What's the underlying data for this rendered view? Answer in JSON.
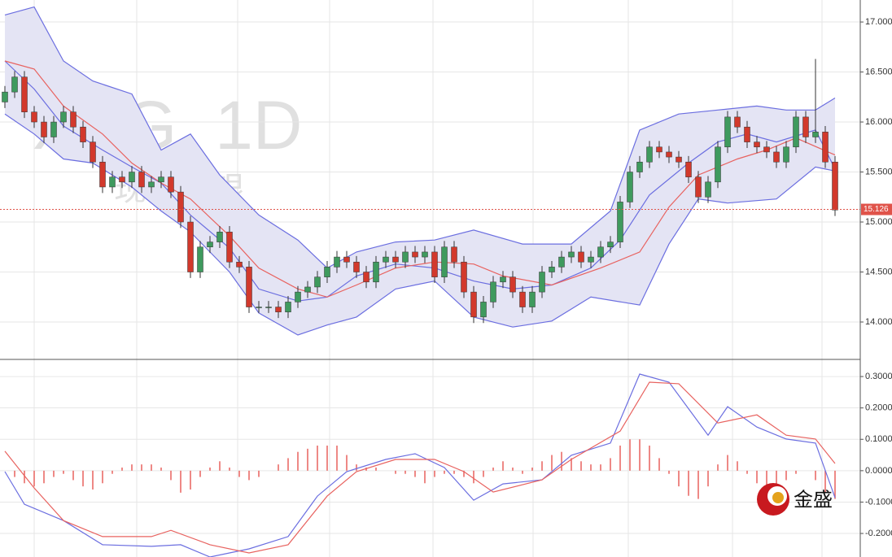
{
  "logo": "金盛",
  "chart_data": [
    {
      "type": "candlestick",
      "watermark": "XAG, 1D",
      "watermark_sub": "现货白银",
      "ylim": [
        13.626,
        17.22
      ],
      "yticks": [
        {
          "value": 14,
          "label": "14.000"
        },
        {
          "value": 14.5,
          "label": "14.500"
        },
        {
          "value": 15,
          "label": "15.000"
        },
        {
          "value": 15.5,
          "label": "15.500"
        },
        {
          "value": 16,
          "label": "16.000"
        },
        {
          "value": 16.5,
          "label": "16.500"
        },
        {
          "value": 17,
          "label": "17.000"
        }
      ],
      "grid": true,
      "up_color": "#3f9a5e",
      "down_color": "#d2392c",
      "band_fill": "#e4e4f4",
      "open": [
        16.2,
        16.3,
        16.45,
        16.1,
        16.0,
        15.85,
        16.0,
        16.1,
        15.95,
        15.8,
        15.6,
        15.35,
        15.45,
        15.4,
        15.5,
        15.35,
        15.4,
        15.45,
        15.3,
        15.0,
        14.5,
        14.75,
        14.8,
        14.9,
        14.6,
        14.55,
        14.15,
        14.15,
        14.15,
        14.1,
        14.2,
        14.3,
        14.35,
        14.45,
        14.55,
        14.65,
        14.6,
        14.5,
        14.4,
        14.6,
        14.65,
        14.6,
        14.7,
        14.65,
        14.7,
        14.45,
        14.75,
        14.6,
        14.3,
        14.05,
        14.2,
        14.4,
        14.45,
        14.3,
        14.15,
        14.3,
        14.5,
        14.55,
        14.65,
        14.7,
        14.6,
        14.65,
        14.75,
        14.8,
        15.2,
        15.5,
        15.6,
        15.75,
        15.7,
        15.65,
        15.6,
        15.45,
        15.25,
        15.4,
        15.75,
        16.05,
        15.95,
        15.8,
        15.75,
        15.7,
        15.6,
        15.75,
        16.05,
        15.85,
        15.9,
        15.6
      ],
      "high": [
        16.36,
        16.51,
        16.51,
        16.16,
        16.06,
        16.06,
        16.16,
        16.16,
        16.01,
        15.86,
        15.66,
        15.51,
        15.51,
        15.56,
        15.56,
        15.46,
        15.51,
        15.51,
        15.36,
        15.06,
        14.81,
        14.86,
        14.96,
        14.96,
        14.66,
        14.61,
        14.21,
        14.21,
        14.21,
        14.26,
        14.36,
        14.41,
        14.51,
        14.61,
        14.71,
        14.71,
        14.66,
        14.56,
        14.66,
        14.71,
        14.71,
        14.76,
        14.76,
        14.76,
        14.76,
        14.81,
        14.81,
        14.66,
        14.36,
        14.26,
        14.46,
        14.51,
        14.51,
        14.36,
        14.36,
        14.56,
        14.61,
        14.71,
        14.76,
        14.76,
        14.71,
        14.81,
        14.86,
        15.26,
        15.56,
        15.66,
        15.81,
        15.81,
        15.76,
        15.71,
        15.66,
        15.51,
        15.46,
        15.81,
        16.11,
        16.11,
        16.01,
        15.86,
        15.81,
        15.76,
        15.81,
        16.11,
        16.11,
        16.63,
        15.96,
        15.66
      ],
      "low": [
        16.14,
        16.24,
        16.04,
        15.94,
        15.79,
        15.79,
        15.94,
        15.89,
        15.74,
        15.54,
        15.29,
        15.29,
        15.34,
        15.34,
        15.29,
        15.29,
        15.34,
        15.24,
        14.94,
        14.44,
        14.44,
        14.69,
        14.74,
        14.54,
        14.49,
        14.09,
        14.09,
        14.09,
        14.04,
        14.04,
        14.14,
        14.24,
        14.29,
        14.39,
        14.49,
        14.54,
        14.44,
        14.34,
        14.34,
        14.54,
        14.54,
        14.54,
        14.59,
        14.59,
        14.39,
        14.39,
        14.54,
        14.24,
        13.99,
        13.99,
        14.14,
        14.34,
        14.24,
        14.09,
        14.09,
        14.24,
        14.44,
        14.49,
        14.59,
        14.54,
        14.54,
        14.59,
        14.69,
        14.74,
        15.14,
        15.44,
        15.54,
        15.64,
        15.59,
        15.54,
        15.39,
        15.19,
        15.19,
        15.34,
        15.69,
        15.89,
        15.74,
        15.69,
        15.64,
        15.54,
        15.54,
        15.69,
        15.79,
        15.79,
        15.54,
        15.06
      ],
      "close": [
        16.3,
        16.45,
        16.1,
        16.0,
        15.85,
        16.0,
        16.1,
        15.95,
        15.8,
        15.6,
        15.35,
        15.45,
        15.4,
        15.5,
        15.35,
        15.4,
        15.45,
        15.3,
        15.0,
        14.5,
        14.75,
        14.8,
        14.9,
        14.6,
        14.55,
        14.15,
        14.15,
        14.15,
        14.1,
        14.2,
        14.3,
        14.35,
        14.45,
        14.55,
        14.65,
        14.6,
        14.5,
        14.4,
        14.6,
        14.65,
        14.6,
        14.7,
        14.65,
        14.7,
        14.45,
        14.75,
        14.6,
        14.3,
        14.05,
        14.2,
        14.4,
        14.45,
        14.3,
        14.15,
        14.3,
        14.5,
        14.55,
        14.65,
        14.7,
        14.6,
        14.65,
        14.75,
        14.8,
        15.2,
        15.5,
        15.6,
        15.75,
        15.7,
        15.65,
        15.6,
        15.45,
        15.25,
        15.4,
        15.75,
        16.05,
        15.95,
        15.8,
        15.75,
        15.7,
        15.6,
        15.75,
        16.05,
        15.85,
        15.9,
        15.6,
        15.12
      ],
      "lines": [
        {
          "color": "#6b6ee0",
          "x": [
            0,
            3,
            6,
            9,
            13,
            16,
            19,
            22,
            26,
            30,
            33,
            36,
            40,
            44,
            48,
            53,
            58,
            62,
            65,
            69,
            73,
            77,
            80,
            83,
            85
          ],
          "values": [
            17.07,
            17.15,
            16.61,
            16.41,
            16.28,
            15.72,
            15.88,
            15.47,
            15.07,
            14.82,
            14.54,
            14.7,
            14.8,
            14.82,
            14.92,
            14.78,
            14.78,
            15.11,
            15.92,
            16.08,
            16.12,
            16.16,
            16.12,
            16.12,
            16.24
          ]
        },
        {
          "color": "#6b6ee0",
          "x": [
            0,
            3,
            6,
            10,
            13,
            16,
            19,
            23,
            26,
            30,
            33,
            36,
            40,
            44,
            48,
            52,
            56,
            60,
            63,
            66,
            70,
            73,
            76,
            79,
            83,
            85
          ],
          "values": [
            16.61,
            16.33,
            15.96,
            15.72,
            15.55,
            15.39,
            15.07,
            14.74,
            14.33,
            14.21,
            14.25,
            14.46,
            14.58,
            14.54,
            14.41,
            14.33,
            14.37,
            14.54,
            14.82,
            15.27,
            15.59,
            15.8,
            15.88,
            15.8,
            15.92,
            15.53
          ]
        },
        {
          "color": "#6b6ee0",
          "x": [
            0,
            3,
            6,
            9,
            13,
            16,
            19,
            23,
            26,
            30,
            33,
            36,
            40,
            44,
            48,
            52,
            56,
            60,
            65,
            68,
            71,
            74,
            79,
            83,
            85
          ],
          "values": [
            16.08,
            15.88,
            15.63,
            15.59,
            15.35,
            15.11,
            14.9,
            14.5,
            14.09,
            13.87,
            13.97,
            14.05,
            14.33,
            14.41,
            14.05,
            13.95,
            14.01,
            14.25,
            14.17,
            14.78,
            15.23,
            15.19,
            15.23,
            15.55,
            15.51
          ]
        },
        {
          "color": "#e8625f",
          "x": [
            0,
            3,
            6,
            10,
            13,
            16,
            19,
            23,
            26,
            30,
            33,
            36,
            40,
            44,
            48,
            51,
            56,
            61,
            65,
            68,
            71,
            75,
            78,
            81,
            85
          ],
          "values": [
            16.61,
            16.53,
            16.16,
            15.88,
            15.59,
            15.39,
            15.23,
            14.86,
            14.54,
            14.33,
            14.25,
            14.37,
            14.54,
            14.6,
            14.58,
            14.46,
            14.37,
            14.54,
            14.7,
            15.15,
            15.47,
            15.63,
            15.72,
            15.84,
            15.67
          ]
        }
      ],
      "last_price": 15.126,
      "last_price_color": "#e0534a"
    },
    {
      "type": "macd",
      "ylim": [
        -0.275,
        0.352
      ],
      "yticks": [
        {
          "value": -0.2,
          "label": "-0.2000"
        },
        {
          "value": -0.1,
          "label": "-0.1000"
        },
        {
          "value": 0,
          "label": "0.0000"
        },
        {
          "value": 0.1,
          "label": "0.1000"
        },
        {
          "value": 0.2,
          "label": "0.2000"
        },
        {
          "value": 0.3,
          "label": "0.3000"
        }
      ],
      "grid": true,
      "histogram_color": "#e8625f",
      "histogram": [
        0.0,
        -0.02,
        -0.04,
        -0.05,
        -0.04,
        -0.02,
        -0.01,
        -0.03,
        -0.05,
        -0.06,
        -0.04,
        -0.01,
        0.01,
        0.02,
        0.02,
        0.02,
        0.01,
        -0.03,
        -0.07,
        -0.06,
        -0.02,
        0.01,
        0.03,
        0.01,
        -0.02,
        -0.03,
        -0.02,
        0.0,
        0.02,
        0.04,
        0.06,
        0.07,
        0.08,
        0.08,
        0.08,
        0.05,
        0.02,
        0.01,
        0.01,
        0.0,
        -0.01,
        -0.01,
        -0.02,
        -0.04,
        -0.02,
        -0.01,
        -0.01,
        -0.02,
        -0.04,
        -0.02,
        0.01,
        0.03,
        0.01,
        -0.01,
        0.01,
        0.03,
        0.05,
        0.06,
        0.04,
        0.03,
        0.02,
        0.02,
        0.04,
        0.08,
        0.1,
        0.1,
        0.08,
        0.04,
        -0.01,
        -0.05,
        -0.08,
        -0.09,
        -0.05,
        0.02,
        0.05,
        0.03,
        -0.01,
        -0.04,
        -0.06,
        -0.05,
        -0.03,
        -0.01,
        0.0,
        -0.03,
        -0.07,
        -0.09
      ],
      "lines": [
        {
          "color": "#6b6ee0",
          "x": [
            0,
            2,
            6,
            10,
            15,
            18,
            21,
            25,
            29,
            32,
            35,
            39,
            42,
            45,
            48,
            51,
            55,
            58,
            62,
            65,
            68,
            72,
            74,
            77,
            80,
            83,
            85
          ],
          "values": [
            -0.003,
            -0.107,
            -0.159,
            -0.236,
            -0.241,
            -0.236,
            -0.275,
            -0.249,
            -0.21,
            -0.081,
            -0.003,
            0.036,
            0.054,
            0.01,
            -0.094,
            -0.042,
            -0.029,
            0.049,
            0.088,
            0.308,
            0.282,
            0.113,
            0.204,
            0.139,
            0.101,
            0.088,
            -0.086
          ]
        },
        {
          "color": "#e8625f",
          "x": [
            0,
            3,
            6,
            10,
            15,
            17,
            21,
            25,
            29,
            33,
            36,
            40,
            44,
            47,
            50,
            55,
            58,
            63,
            66,
            69,
            73,
            77,
            80,
            83,
            85
          ],
          "values": [
            0.062,
            -0.055,
            -0.159,
            -0.21,
            -0.21,
            -0.19,
            -0.236,
            -0.262,
            -0.236,
            -0.081,
            -0.003,
            0.036,
            0.036,
            -0.003,
            -0.068,
            -0.029,
            0.036,
            0.126,
            0.282,
            0.277,
            0.152,
            0.178,
            0.113,
            0.101,
            0.023
          ]
        }
      ]
    }
  ]
}
